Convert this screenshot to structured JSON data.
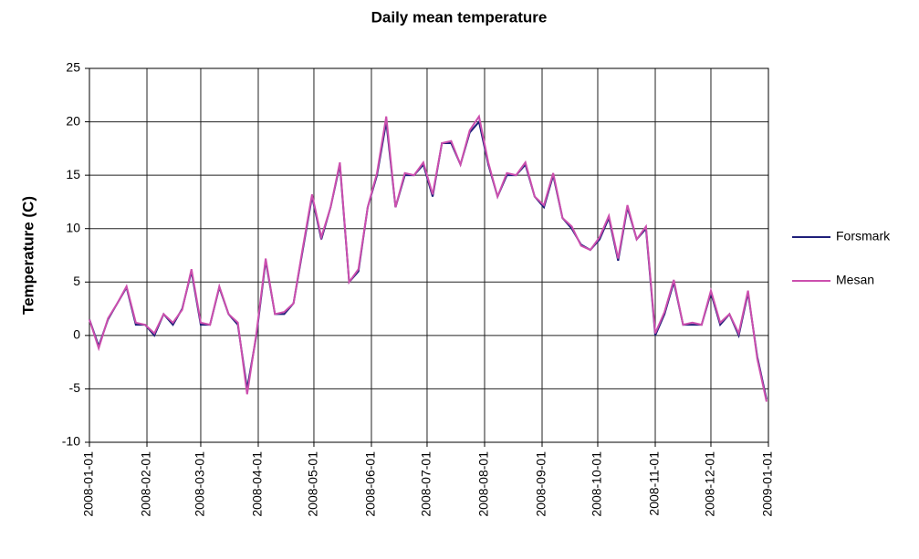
{
  "chart_data": {
    "type": "line",
    "title": "Daily mean temperature",
    "y_label": "Temperature (C)",
    "x": [
      "2008-01-01",
      "2008-01-06",
      "2008-01-11",
      "2008-01-16",
      "2008-01-21",
      "2008-01-26",
      "2008-01-31",
      "2008-02-05",
      "2008-02-10",
      "2008-02-15",
      "2008-02-20",
      "2008-02-25",
      "2008-03-01",
      "2008-03-06",
      "2008-03-11",
      "2008-03-16",
      "2008-03-21",
      "2008-03-26",
      "2008-03-31",
      "2008-04-05",
      "2008-04-10",
      "2008-04-15",
      "2008-04-20",
      "2008-04-25",
      "2008-04-30",
      "2008-05-05",
      "2008-05-10",
      "2008-05-15",
      "2008-05-20",
      "2008-05-25",
      "2008-05-30",
      "2008-06-04",
      "2008-06-09",
      "2008-06-14",
      "2008-06-19",
      "2008-06-24",
      "2008-06-29",
      "2008-07-04",
      "2008-07-09",
      "2008-07-14",
      "2008-07-19",
      "2008-07-24",
      "2008-07-29",
      "2008-08-03",
      "2008-08-08",
      "2008-08-13",
      "2008-08-18",
      "2008-08-23",
      "2008-08-28",
      "2008-09-02",
      "2008-09-07",
      "2008-09-12",
      "2008-09-17",
      "2008-09-22",
      "2008-09-27",
      "2008-10-02",
      "2008-10-07",
      "2008-10-12",
      "2008-10-17",
      "2008-10-22",
      "2008-10-27",
      "2008-11-01",
      "2008-11-06",
      "2008-11-11",
      "2008-11-16",
      "2008-11-21",
      "2008-11-26",
      "2008-12-01",
      "2008-12-06",
      "2008-12-11",
      "2008-12-16",
      "2008-12-21",
      "2008-12-26",
      "2008-12-31"
    ],
    "series": [
      {
        "name": "Forsmark",
        "color": "#1f1f7a",
        "values": [
          1.5,
          -1,
          1.5,
          3,
          4.5,
          1,
          1,
          0,
          2,
          1,
          2.5,
          6,
          1,
          1,
          4.5,
          2,
          1,
          -5,
          0,
          7,
          2,
          2,
          3,
          8,
          13,
          9,
          12,
          16,
          5,
          6,
          12,
          15,
          20,
          12,
          15,
          15,
          16,
          13,
          18,
          18,
          16,
          19,
          20,
          16,
          13,
          15,
          15,
          16,
          13,
          12,
          15,
          11,
          10,
          8.5,
          8,
          9,
          11,
          7,
          12,
          9,
          10,
          0,
          2,
          5,
          1,
          1,
          1,
          4,
          1,
          2,
          0,
          4,
          -2,
          -6
        ]
      },
      {
        "name": "Mesan",
        "color": "#cc4fae",
        "values": [
          1.5,
          -1.2,
          1.6,
          3,
          4.6,
          1.2,
          1,
          0.2,
          2,
          1.2,
          2.4,
          6.2,
          1.2,
          1,
          4.6,
          2,
          1.2,
          -5.5,
          0.2,
          7.2,
          2,
          2.2,
          3,
          8.2,
          13.2,
          9.2,
          12,
          16.2,
          5,
          6.2,
          12,
          15.2,
          20.5,
          12,
          15.2,
          15,
          16.2,
          13.2,
          18,
          18.2,
          16,
          19.2,
          20.5,
          16.2,
          13,
          15.2,
          15,
          16.2,
          13,
          12.2,
          15.2,
          11,
          10.2,
          8.4,
          8,
          9.2,
          11.2,
          7.2,
          12.2,
          9,
          10.2,
          0.2,
          2.2,
          5.2,
          1,
          1.2,
          1,
          4.2,
          1.2,
          2,
          0.2,
          4.2,
          -2.2,
          -6.2
        ]
      }
    ],
    "xlim": [
      "2008-01-01",
      "2009-01-01"
    ],
    "xticks": [
      "2008-01-01",
      "2008-02-01",
      "2008-03-01",
      "2008-04-01",
      "2008-05-01",
      "2008-06-01",
      "2008-07-01",
      "2008-08-01",
      "2008-09-01",
      "2008-10-01",
      "2008-11-01",
      "2008-12-01",
      "2009-01-01"
    ],
    "ylim": [
      -10,
      25
    ],
    "yticks": [
      -10,
      -5,
      0,
      5,
      10,
      15,
      20,
      25
    ],
    "grid": true,
    "legend": "right"
  }
}
